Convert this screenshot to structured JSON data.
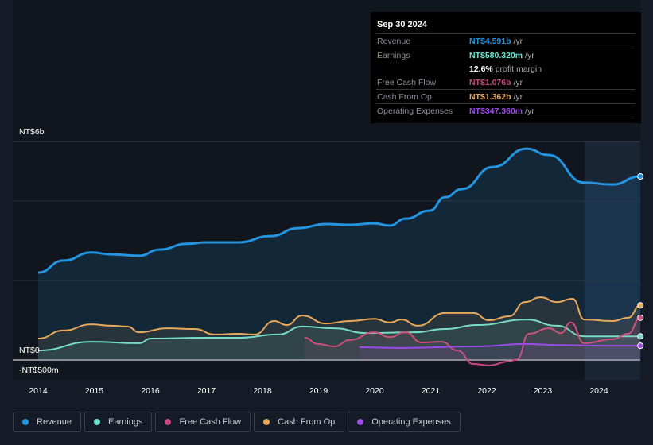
{
  "tooltip": {
    "date": "Sep 30 2024",
    "rows": [
      {
        "label": "Revenue",
        "value": "NT$4.591b",
        "unit": " /yr",
        "color": "#2394df"
      },
      {
        "label": "Earnings",
        "value": "NT$580.320m",
        "unit": " /yr",
        "color": "#6ce3d2"
      },
      {
        "label": "",
        "value": "12.6%",
        "unit": " profit margin",
        "color": "#ffffff"
      },
      {
        "label": "Free Cash Flow",
        "value": "NT$1.076b",
        "unit": " /yr",
        "color": "#c9477f"
      },
      {
        "label": "Cash From Op",
        "value": "NT$1.362b",
        "unit": " /yr",
        "color": "#e8a85a"
      },
      {
        "label": "Operating Expenses",
        "value": "NT$347.360m",
        "unit": " /yr",
        "color": "#9c4ae8"
      }
    ]
  },
  "chart_data": {
    "type": "line",
    "ylim": [
      -0.5,
      6
    ],
    "y_tick_labels": [
      "NT$6b",
      "NT$0",
      "-NT$500m"
    ],
    "x_tick_labels": [
      "2014",
      "2015",
      "2016",
      "2017",
      "2018",
      "2019",
      "2020",
      "2021",
      "2022",
      "2023",
      "2024"
    ],
    "forecast_region_start": 2023.75,
    "series": [
      {
        "name": "Revenue",
        "color": "#2394df",
        "fill": true,
        "points": [
          [
            2014,
            2.4
          ],
          [
            2014.45,
            2.73
          ],
          [
            2014.95,
            2.95
          ],
          [
            2015.3,
            2.9
          ],
          [
            2015.8,
            2.86
          ],
          [
            2016.16,
            3.03
          ],
          [
            2016.65,
            3.19
          ],
          [
            2017,
            3.23
          ],
          [
            2017.57,
            3.23
          ],
          [
            2018.14,
            3.4
          ],
          [
            2018.64,
            3.62
          ],
          [
            2019.13,
            3.73
          ],
          [
            2019.56,
            3.71
          ],
          [
            2019.99,
            3.75
          ],
          [
            2020.27,
            3.69
          ],
          [
            2020.55,
            3.88
          ],
          [
            2020.98,
            4.1
          ],
          [
            2021.26,
            4.47
          ],
          [
            2021.55,
            4.69
          ],
          [
            2022.11,
            5.3
          ],
          [
            2022.71,
            5.8
          ],
          [
            2023.1,
            5.63
          ],
          [
            2023.74,
            4.87
          ],
          [
            2024.24,
            4.82
          ],
          [
            2024.74,
            5.04
          ]
        ]
      },
      {
        "name": "Earnings",
        "color": "#6ce3d2",
        "fill": true,
        "points": [
          [
            2014,
            0.26
          ],
          [
            2014.95,
            0.5
          ],
          [
            2015.8,
            0.46
          ],
          [
            2016.01,
            0.59
          ],
          [
            2017,
            0.61
          ],
          [
            2017.57,
            0.61
          ],
          [
            2018.28,
            0.7
          ],
          [
            2018.71,
            0.92
          ],
          [
            2019.28,
            0.87
          ],
          [
            2019.84,
            0.74
          ],
          [
            2020.7,
            0.76
          ],
          [
            2021.26,
            0.85
          ],
          [
            2021.83,
            0.96
          ],
          [
            2022.71,
            1.11
          ],
          [
            2023.25,
            0.94
          ],
          [
            2023.74,
            0.65
          ],
          [
            2024.74,
            0.65
          ]
        ]
      },
      {
        "name": "Free Cash Flow",
        "color": "#c9477f",
        "fill": true,
        "points": [
          [
            2018.75,
            0.61
          ],
          [
            2018.99,
            0.44
          ],
          [
            2019.28,
            0.37
          ],
          [
            2019.56,
            0.55
          ],
          [
            2019.99,
            0.76
          ],
          [
            2020.27,
            0.63
          ],
          [
            2020.55,
            0.76
          ],
          [
            2020.84,
            0.48
          ],
          [
            2021.19,
            0.5
          ],
          [
            2021.48,
            0.26
          ],
          [
            2021.76,
            -0.11
          ],
          [
            2022.04,
            -0.15
          ],
          [
            2022.4,
            -0.04
          ],
          [
            2022.54,
            0.02
          ],
          [
            2022.75,
            0.72
          ],
          [
            2023.11,
            0.87
          ],
          [
            2023.32,
            0.74
          ],
          [
            2023.5,
            1.03
          ],
          [
            2023.74,
            0.46
          ],
          [
            2024.24,
            0.57
          ],
          [
            2024.52,
            0.72
          ],
          [
            2024.74,
            1.16
          ]
        ]
      },
      {
        "name": "Cash From Op",
        "color": "#e8a85a",
        "fill": true,
        "points": [
          [
            2014,
            0.59
          ],
          [
            2014.45,
            0.81
          ],
          [
            2014.95,
            0.98
          ],
          [
            2015.3,
            0.94
          ],
          [
            2015.59,
            0.92
          ],
          [
            2015.8,
            0.76
          ],
          [
            2016.3,
            0.87
          ],
          [
            2016.79,
            0.85
          ],
          [
            2017.15,
            0.7
          ],
          [
            2017.57,
            0.72
          ],
          [
            2017.86,
            0.7
          ],
          [
            2018.21,
            1.07
          ],
          [
            2018.43,
            0.96
          ],
          [
            2018.71,
            1.22
          ],
          [
            2019.13,
            1.0
          ],
          [
            2019.56,
            1.07
          ],
          [
            2019.99,
            1.13
          ],
          [
            2020.27,
            1.03
          ],
          [
            2020.48,
            1.11
          ],
          [
            2020.77,
            0.94
          ],
          [
            2021.26,
            1.29
          ],
          [
            2021.76,
            1.29
          ],
          [
            2022.04,
            1.09
          ],
          [
            2022.4,
            1.2
          ],
          [
            2022.68,
            1.59
          ],
          [
            2022.96,
            1.72
          ],
          [
            2023.25,
            1.59
          ],
          [
            2023.53,
            1.68
          ],
          [
            2023.74,
            1.11
          ],
          [
            2024.24,
            1.07
          ],
          [
            2024.52,
            1.16
          ],
          [
            2024.74,
            1.5
          ]
        ]
      },
      {
        "name": "Operating Expenses",
        "color": "#9c4ae8",
        "fill": true,
        "points": [
          [
            2019.73,
            0.35
          ],
          [
            2020.41,
            0.33
          ],
          [
            2021.83,
            0.37
          ],
          [
            2022.68,
            0.44
          ],
          [
            2023.25,
            0.41
          ],
          [
            2024.1,
            0.39
          ],
          [
            2024.74,
            0.39
          ]
        ]
      }
    ]
  }
}
